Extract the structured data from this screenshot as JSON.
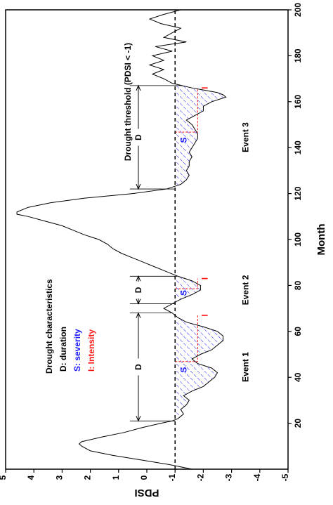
{
  "chart_data": {
    "type": "line",
    "xlabel": "Month",
    "ylabel": "PDSI",
    "xlim": [
      0,
      200
    ],
    "ylim": [
      -5,
      5
    ],
    "xticks": [
      "20",
      "40",
      "60",
      "80",
      "100",
      "120",
      "140",
      "160",
      "180",
      "200"
    ],
    "yticks": [
      "5",
      "4",
      "3",
      "2",
      "1",
      "0",
      "-1",
      "-2",
      "-3",
      "-4",
      "-5"
    ],
    "threshold": -1,
    "threshold_label": "Drought threshold (PDSI < -1)",
    "legend": {
      "title": "Drought characteristics",
      "items": [
        {
          "text": "D: duration",
          "color": "#000000"
        },
        {
          "text": "S: severity",
          "color": "#1a1aff"
        },
        {
          "text": "I: Intensity",
          "color": "#ff1a1a"
        }
      ]
    },
    "series": [
      {
        "x": [
          0,
          2,
          4,
          6,
          8,
          10,
          11,
          12,
          14,
          16,
          18,
          20,
          21,
          22,
          24,
          26,
          28,
          30,
          32,
          34,
          36,
          38,
          40,
          42,
          44,
          46,
          48,
          50,
          52,
          54,
          56,
          58,
          60,
          62,
          64,
          66,
          68,
          70,
          72,
          74,
          76,
          78,
          80,
          82,
          84,
          86,
          88,
          90,
          92,
          94,
          96,
          98,
          100,
          102,
          104,
          106,
          108,
          110,
          111,
          112,
          114,
          116,
          118,
          120,
          122,
          124,
          126,
          128,
          130,
          132,
          134,
          136,
          138,
          140,
          142,
          144,
          146,
          148,
          150,
          152,
          154,
          156,
          158,
          160,
          162,
          163,
          164,
          166,
          168,
          170,
          172,
          174,
          176,
          178,
          180,
          182,
          184,
          186,
          188,
          190,
          192,
          194,
          196,
          198,
          200
        ],
        "y": [
          -1.6,
          -0.8,
          0.2,
          1.2,
          2.0,
          2.3,
          2.4,
          2.3,
          1.6,
          0.8,
          0.2,
          -0.5,
          -0.9,
          -1.1,
          -1.3,
          -1.2,
          -1.4,
          -1.5,
          -1.3,
          -1.6,
          -2.0,
          -2.2,
          -2.4,
          -2.5,
          -2.3,
          -1.8,
          -1.6,
          -1.9,
          -2.3,
          -2.5,
          -2.7,
          -2.7,
          -2.5,
          -2.0,
          -1.4,
          -1.1,
          -0.9,
          -0.6,
          -0.9,
          -1.2,
          -1.6,
          -1.9,
          -1.9,
          -1.6,
          -1.1,
          -0.7,
          -0.3,
          0.1,
          0.5,
          0.9,
          1.2,
          1.4,
          1.7,
          2.2,
          2.6,
          3.0,
          3.6,
          4.2,
          4.6,
          4.6,
          4.2,
          3.4,
          2.2,
          0.5,
          -0.7,
          -1.2,
          -1.4,
          -1.5,
          -1.4,
          -1.5,
          -1.5,
          -1.6,
          -1.5,
          -1.6,
          -1.7,
          -1.8,
          -1.8,
          -1.7,
          -1.6,
          -1.4,
          -1.7,
          -2.0,
          -2.0,
          -2.3,
          -2.8,
          -2.7,
          -2.5,
          -1.6,
          -0.9,
          -0.6,
          -0.2,
          -0.6,
          -0.1,
          -0.6,
          -0.2,
          -0.9,
          -0.3,
          -1.4,
          -0.6,
          -0.9,
          -1.2,
          -0.5,
          -0.1,
          -0.6,
          -1.2
        ]
      }
    ],
    "events": [
      {
        "label": "Event 1",
        "start": 21,
        "end": 68,
        "duration": "D",
        "severity": "S",
        "intensity": "I"
      },
      {
        "label": "Event 2",
        "start": 72,
        "end": 84,
        "duration": "D",
        "severity": "S",
        "intensity": "I"
      },
      {
        "label": "Event 3",
        "start": 122,
        "end": 167,
        "duration": "D",
        "severity": "S",
        "intensity": "I"
      }
    ],
    "grid": false,
    "orientation": "rotated 90° clockwise"
  }
}
